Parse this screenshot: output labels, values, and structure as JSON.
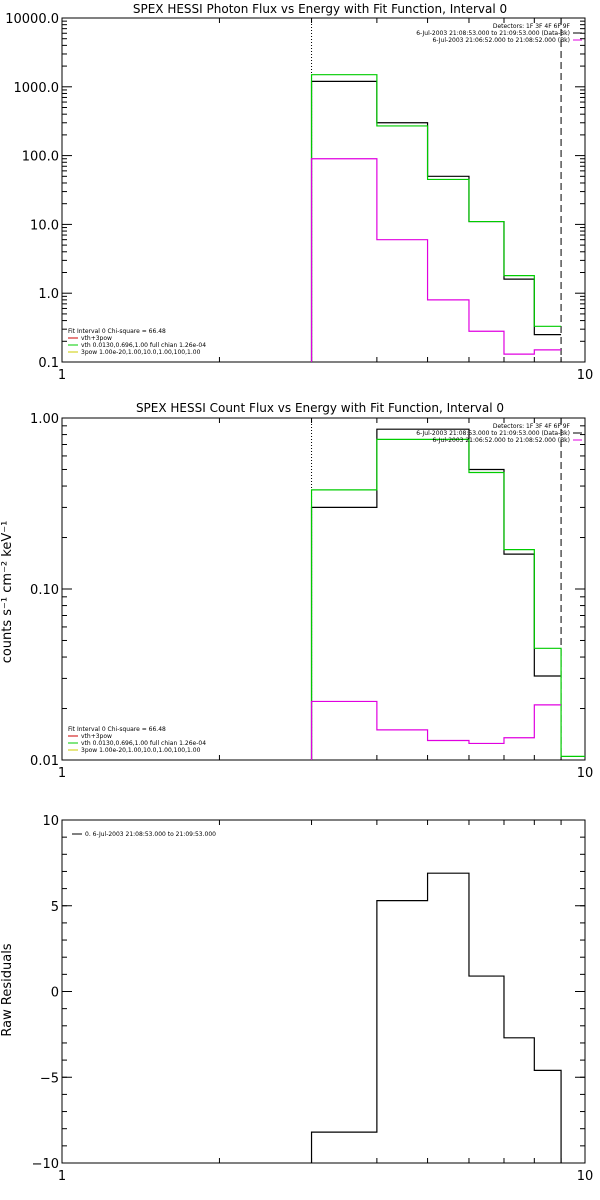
{
  "chart_data": [
    {
      "type": "line",
      "title": "SPEX HESSI Photon Flux vs Energy with Fit Function, Interval 0",
      "xlabel": "",
      "ylabel": "",
      "xscale": "log",
      "yscale": "log",
      "xlim": [
        1,
        10
      ],
      "ylim": [
        0.1,
        10000
      ],
      "x_ticks": [
        "1",
        "10"
      ],
      "y_ticks": [
        "0.1",
        "1.0",
        "10.0",
        "100.0",
        "1000.0",
        "10000.0"
      ],
      "y_tick_values": [
        0.1,
        1,
        10,
        100,
        1000,
        10000
      ],
      "vlines": [
        {
          "x": 3.0,
          "style": "dotted"
        },
        {
          "x": 9.0,
          "style": "dashed"
        }
      ],
      "info_lines": [
        "Detectors: 1F 3F 4F 6F 9F",
        "6-Jul-2003 21:08:53.000 to 21:09:53.000 (Data-Bk)",
        "6-Jul-2003 21:06:52.000 to 21:08:52.000 (Bk)"
      ],
      "info_colors": [
        "",
        "#000000",
        "#e000e0"
      ],
      "fit_lines": [
        "Fit Interval 0   Chi-square = 66.48",
        "vth+3pow",
        "vth 0.0130,0.696,1.00  full chian 1.26e-04",
        "3pow 1.00e-20,1.00,10.0,1.00,100,1.00"
      ],
      "fit_colors": [
        "",
        "#cc0000",
        "#00cc00",
        "#cccc00"
      ],
      "series": [
        {
          "color": "#000000",
          "edges": [
            3.0,
            4.0,
            5.0,
            6.0,
            7.0,
            8.0,
            9.0
          ],
          "values": [
            1200,
            300,
            50,
            11,
            1.6,
            0.25
          ]
        },
        {
          "color": "#00cc00",
          "edges": [
            3.0,
            4.0,
            5.0,
            6.0,
            7.0,
            8.0,
            9.0
          ],
          "values": [
            1500,
            270,
            45,
            11,
            1.8,
            0.33
          ]
        },
        {
          "color": "#e000e0",
          "edges": [
            3.0,
            4.0,
            5.0,
            6.0,
            7.0,
            8.0,
            9.0
          ],
          "values": [
            90,
            6,
            0.8,
            0.28,
            0.13,
            0.15
          ]
        }
      ]
    },
    {
      "type": "line",
      "title": "SPEX HESSI Count Flux vs Energy with Fit Function, Interval 0",
      "xlabel": "",
      "ylabel": "counts s⁻¹ cm⁻² keV⁻¹",
      "xscale": "log",
      "yscale": "log",
      "xlim": [
        1,
        10
      ],
      "ylim": [
        0.01,
        1.0
      ],
      "x_ticks": [
        "1",
        "10"
      ],
      "y_ticks": [
        "0.01",
        "0.10",
        "1.00"
      ],
      "y_tick_values": [
        0.01,
        0.1,
        1.0
      ],
      "vlines": [
        {
          "x": 3.0,
          "style": "dotted"
        },
        {
          "x": 9.0,
          "style": "dashed"
        }
      ],
      "info_lines": [
        "Detectors: 1F 3F 4F 6F 9F",
        "6-Jul-2003 21:08:53.000 to 21:09:53.000 (Data-Bk)",
        "6-Jul-2003 21:06:52.000 to 21:08:52.000 (Bk)"
      ],
      "info_colors": [
        "",
        "#000000",
        "#e000e0"
      ],
      "fit_lines": [
        "Fit Interval 0   Chi-square = 66.48",
        "vth+3pow",
        "vth 0.0130,0.696,1.00  full chian 1.26e-04",
        "3pow 1.00e-20,1.00,10.0,1.00,100,1.00"
      ],
      "fit_colors": [
        "",
        "#cc0000",
        "#00cc00",
        "#cccc00"
      ],
      "series": [
        {
          "color": "#000000",
          "edges": [
            3.0,
            4.0,
            5.0,
            6.0,
            7.0,
            8.0,
            9.0
          ],
          "values": [
            0.3,
            0.86,
            0.86,
            0.5,
            0.16,
            0.031
          ]
        },
        {
          "color": "#00cc00",
          "edges": [
            3.0,
            4.0,
            5.0,
            6.0,
            7.0,
            8.0,
            9.0,
            10.0
          ],
          "values": [
            0.38,
            0.75,
            0.75,
            0.48,
            0.17,
            0.045,
            0.0105
          ]
        },
        {
          "color": "#e000e0",
          "edges": [
            3.0,
            4.0,
            5.0,
            6.0,
            7.0,
            8.0,
            9.0
          ],
          "values": [
            0.022,
            0.015,
            0.013,
            0.0125,
            0.0135,
            0.021
          ]
        }
      ]
    },
    {
      "type": "line",
      "title": "",
      "xlabel": "",
      "ylabel": "Raw Residuals",
      "xscale": "log",
      "yscale": "linear",
      "xlim": [
        1,
        10
      ],
      "ylim": [
        -10,
        10
      ],
      "x_ticks": [
        "1",
        "10"
      ],
      "y_ticks": [
        "−10",
        "−5",
        "0",
        "5",
        "10"
      ],
      "y_tick_values": [
        -10,
        -5,
        0,
        5,
        10
      ],
      "vlines": [],
      "info_lines": [],
      "info_colors": [],
      "fit_lines": [],
      "fit_colors": [],
      "legend_entry": "0.  6-Jul-2003 21:08:53.000 to 21:09:53.000",
      "series": [
        {
          "color": "#000000",
          "edges": [
            3.0,
            4.0,
            5.0,
            6.0,
            7.0,
            8.0,
            9.0
          ],
          "values": [
            -8.2,
            5.3,
            6.9,
            0.9,
            -2.7,
            -4.6
          ],
          "extend_to": -10
        }
      ]
    }
  ]
}
